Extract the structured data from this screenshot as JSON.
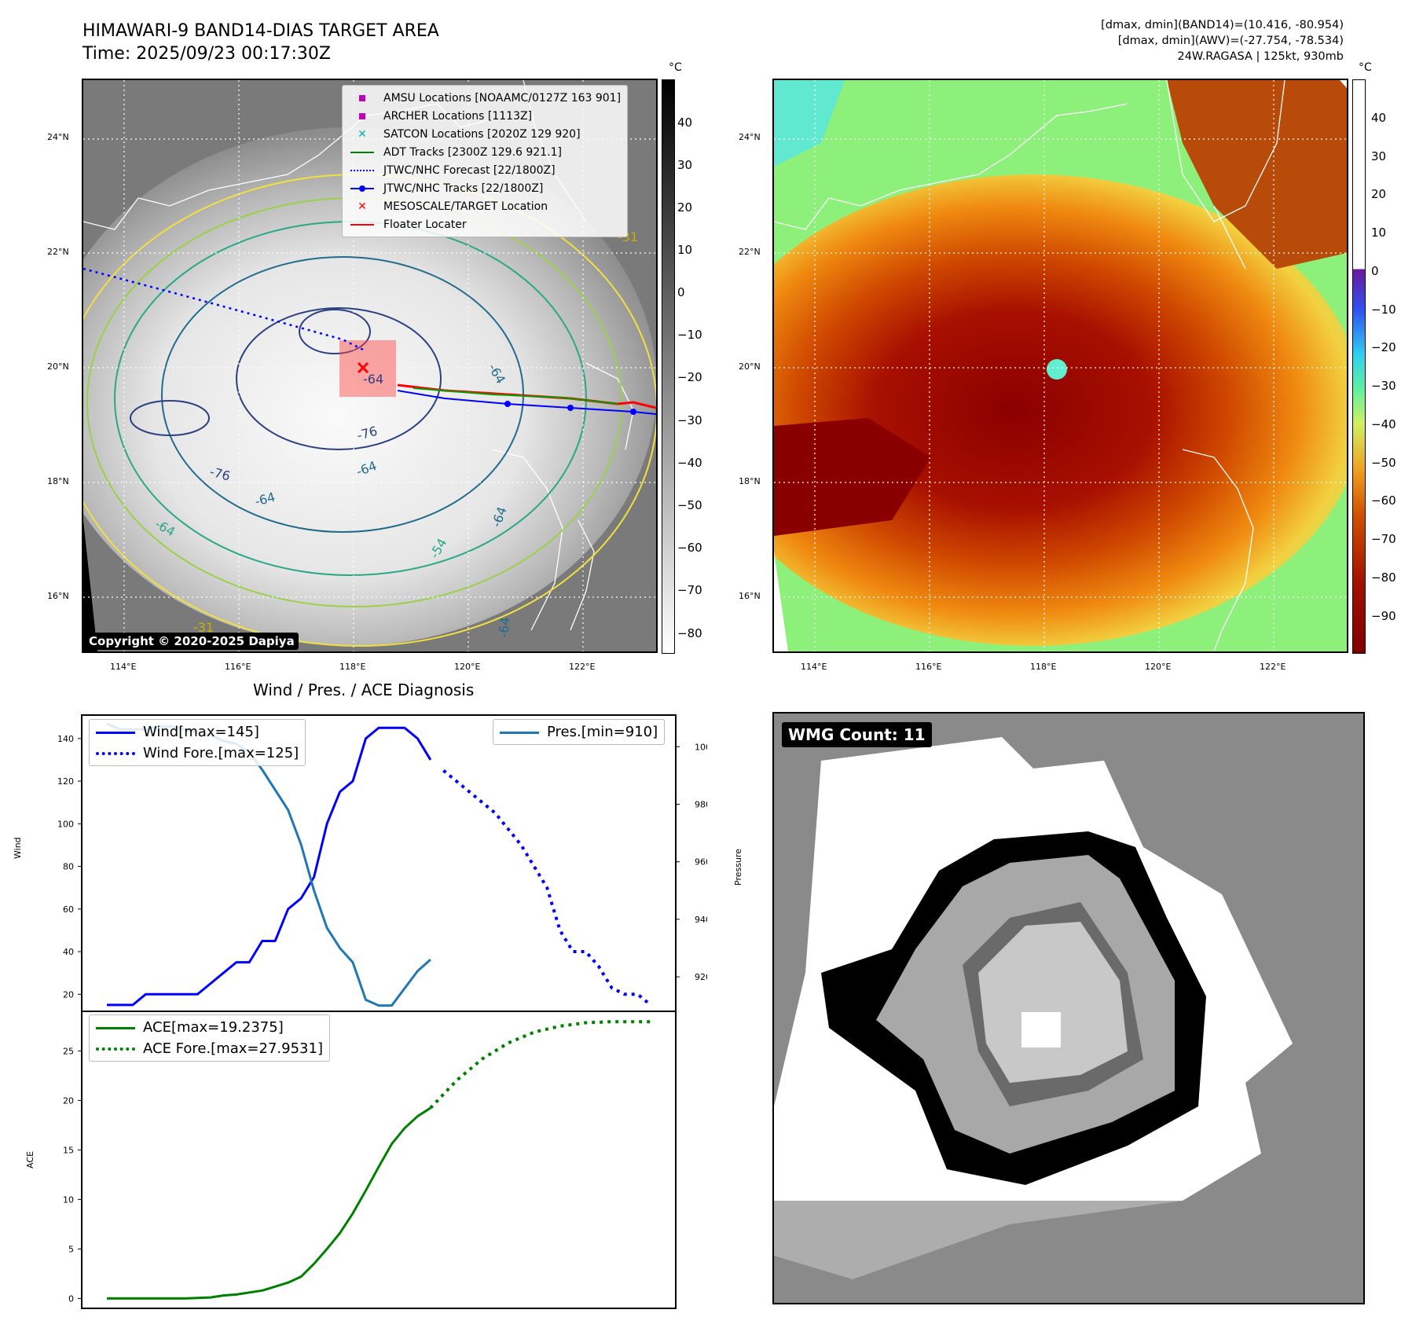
{
  "header": {
    "title_line1": "HIMAWARI-9 BAND14-DIAS TARGET AREA",
    "title_line2": "Time: 2025/09/23 00:17:30Z",
    "info_line1": "[dmax, dmin](BAND14)=(10.416, -80.954)",
    "info_line2": "[dmax, dmin](AWV)=(-27.754, -78.534)",
    "info_line3": "24W.RAGASA | 125kt, 930mb"
  },
  "map_axes": {
    "lon_ticks": [
      "114°E",
      "116°E",
      "118°E",
      "120°E",
      "122°E"
    ],
    "lat_ticks": [
      "24°N",
      "22°N",
      "20°N",
      "18°N",
      "16°N"
    ]
  },
  "ir_panel": {
    "legend": [
      {
        "label": "AMSU Locations [NOAAMC/0127Z 163 901]",
        "icon": "square-marker",
        "color": "#c000c0"
      },
      {
        "label": "ARCHER Locations [1113Z]",
        "icon": "square-marker",
        "color": "#c000c0"
      },
      {
        "label": "SATCON Locations [2020Z 129 920]",
        "icon": "x-marker",
        "color": "#00b0b0"
      },
      {
        "label": "ADT Tracks [2300Z 129.6 921.1]",
        "icon": "solid-line",
        "color": "#008000"
      },
      {
        "label": "JTWC/NHC Forecast [22/1800Z]",
        "icon": "dotted-line",
        "color": "#0000ff"
      },
      {
        "label": "JTWC/NHC Tracks [22/1800Z]",
        "icon": "line-dot",
        "color": "#0000ff"
      },
      {
        "label": "MESOSCALE/TARGET Location",
        "icon": "x-marker",
        "color": "#ff0000"
      },
      {
        "label": "Floater Locater",
        "icon": "solid-line",
        "color": "#ff0000"
      }
    ],
    "copyright": "Copyright © 2020-2025 Dapiya",
    "contour_labels": [
      "-64",
      "-64",
      "-76",
      "-76",
      "-64",
      "-64",
      "-64",
      "-54",
      "-64",
      "-31",
      "-31",
      "-64"
    ],
    "colorbar": {
      "unit": "°C",
      "ticks": [
        "40",
        "30",
        "20",
        "10",
        "0",
        "−10",
        "−20",
        "−30",
        "−40",
        "−50",
        "−60",
        "−70",
        "−80"
      ]
    }
  },
  "awv_panel": {
    "colorbar": {
      "unit": "°C",
      "ticks": [
        "40",
        "30",
        "20",
        "10",
        "0",
        "−10",
        "−20",
        "−30",
        "−40",
        "−50",
        "−60",
        "−70",
        "−80",
        "−90"
      ]
    }
  },
  "diagnosis": {
    "title": "Wind / Pres. / ACE Diagnosis",
    "wind_ylabel": "Wind",
    "pres_ylabel": "Pressure",
    "ace_ylabel": "ACE",
    "legend_wind": "Wind[max=145]",
    "legend_wind_fore": "Wind Fore.[max=125]",
    "legend_pres": "Pres.[min=910]",
    "legend_ace": "ACE[max=19.2375]",
    "legend_ace_fore": "ACE Fore.[max=27.9531]"
  },
  "wmg": {
    "label": "WMG Count: 11"
  },
  "chart_data": [
    {
      "type": "line",
      "title": "Wind / Pres. / ACE Diagnosis",
      "ylabel": "Wind",
      "ylim": [
        12,
        151
      ],
      "yticks": [
        20,
        40,
        60,
        80,
        100,
        120,
        140
      ],
      "x_range": [
        0,
        42
      ],
      "series": [
        {
          "name": "Wind[max=145]",
          "color": "#0000ff",
          "style": "solid",
          "x": [
            0,
            2,
            3,
            4,
            5,
            6,
            7,
            8,
            9,
            10,
            11,
            12,
            13,
            14,
            15,
            16,
            17,
            18,
            19,
            20,
            21,
            22,
            23,
            24,
            25
          ],
          "y": [
            15,
            15,
            20,
            20,
            20,
            20,
            20,
            25,
            30,
            35,
            35,
            45,
            45,
            60,
            65,
            75,
            100,
            115,
            120,
            140,
            145,
            145,
            145,
            140,
            130
          ]
        },
        {
          "name": "Wind Fore.[max=125]",
          "color": "#0000ff",
          "style": "dotted",
          "x": [
            26,
            28,
            30,
            32,
            34,
            35,
            36,
            37,
            38,
            39,
            40,
            41,
            42
          ],
          "y": [
            125,
            115,
            105,
            90,
            70,
            50,
            40,
            40,
            33,
            23,
            20,
            20,
            15
          ]
        }
      ]
    },
    {
      "type": "line",
      "ylabel": "Pressure",
      "ylim": [
        908,
        1011
      ],
      "yticks": [
        920,
        940,
        960,
        980,
        1000
      ],
      "x_range": [
        0,
        42
      ],
      "series": [
        {
          "name": "Pres.[min=910]",
          "color": "#1f77b4",
          "style": "solid",
          "x": [
            0,
            1,
            2,
            3,
            4,
            5,
            6,
            7,
            8,
            9,
            10,
            11,
            12,
            13,
            14,
            15,
            16,
            17,
            18,
            19,
            20,
            21,
            22,
            23,
            24,
            25
          ],
          "y": [
            1008,
            1006,
            1006,
            1006,
            1007,
            1007,
            1006,
            1005,
            1004,
            1002,
            1001,
            998,
            992,
            985,
            978,
            966,
            950,
            937,
            930,
            925,
            912,
            910,
            910,
            916,
            922,
            926
          ]
        }
      ]
    },
    {
      "type": "line",
      "ylabel": "ACE",
      "ylim": [
        -1,
        29
      ],
      "yticks": [
        0,
        5,
        10,
        15,
        20,
        25
      ],
      "x_range": [
        0,
        42
      ],
      "series": [
        {
          "name": "ACE[max=19.2375]",
          "color": "#008000",
          "style": "solid",
          "x": [
            0,
            2,
            4,
            6,
            8,
            9,
            10,
            12,
            13,
            14,
            15,
            16,
            17,
            18,
            19,
            20,
            21,
            22,
            23,
            24,
            25
          ],
          "y": [
            0,
            0,
            0,
            0,
            0.1,
            0.3,
            0.4,
            0.8,
            1.2,
            1.6,
            2.2,
            3.5,
            5.0,
            6.6,
            8.6,
            10.9,
            13.3,
            15.6,
            17.2,
            18.4,
            19.24
          ]
        },
        {
          "name": "ACE Fore.[max=27.9531]",
          "color": "#008000",
          "style": "dotted",
          "x": [
            25,
            27,
            29,
            31,
            33,
            35,
            37,
            39,
            42
          ],
          "y": [
            19.24,
            22.0,
            24.2,
            25.8,
            26.9,
            27.5,
            27.85,
            27.95,
            27.95
          ]
        }
      ]
    }
  ]
}
